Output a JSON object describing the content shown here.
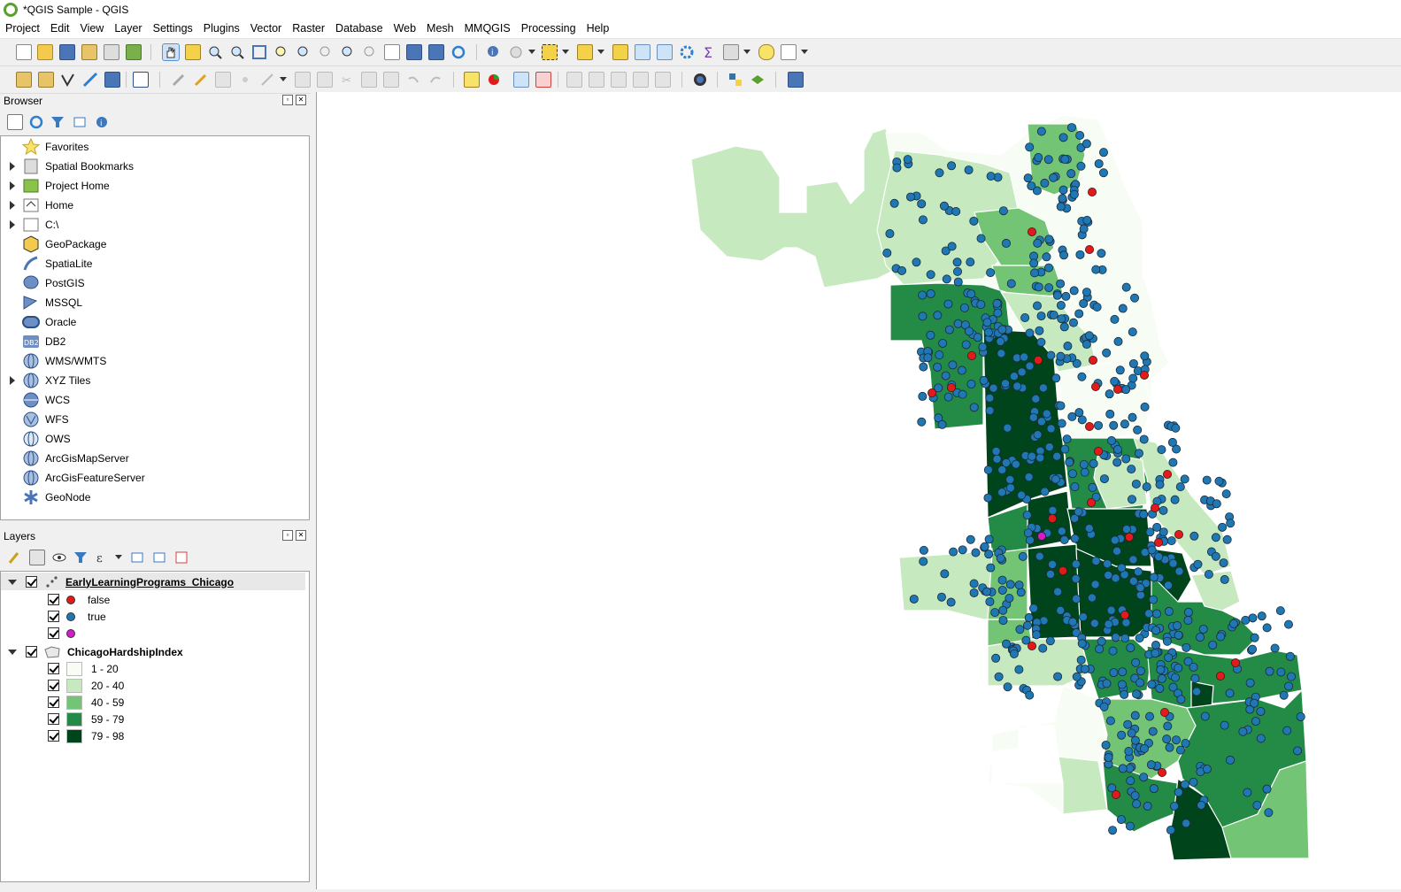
{
  "window": {
    "title": "*QGIS Sample - QGIS"
  },
  "menu": [
    "Project",
    "Edit",
    "View",
    "Layer",
    "Settings",
    "Plugins",
    "Vector",
    "Raster",
    "Database",
    "Web",
    "Mesh",
    "MMQGIS",
    "Processing",
    "Help"
  ],
  "browser": {
    "title": "Browser",
    "items": [
      {
        "label": "Favorites",
        "expandable": false,
        "icon": "star-icon"
      },
      {
        "label": "Spatial Bookmarks",
        "expandable": true,
        "icon": "bookmark-icon"
      },
      {
        "label": "Project Home",
        "expandable": true,
        "icon": "project-home-icon"
      },
      {
        "label": "Home",
        "expandable": true,
        "icon": "home-icon"
      },
      {
        "label": "C:\\",
        "expandable": true,
        "icon": "drive-icon"
      },
      {
        "label": "GeoPackage",
        "expandable": false,
        "icon": "geopackage-icon"
      },
      {
        "label": "SpatiaLite",
        "expandable": false,
        "icon": "spatialite-icon"
      },
      {
        "label": "PostGIS",
        "expandable": false,
        "icon": "postgis-icon"
      },
      {
        "label": "MSSQL",
        "expandable": false,
        "icon": "mssql-icon"
      },
      {
        "label": "Oracle",
        "expandable": false,
        "icon": "oracle-icon"
      },
      {
        "label": "DB2",
        "expandable": false,
        "icon": "db2-icon"
      },
      {
        "label": "WMS/WMTS",
        "expandable": false,
        "icon": "globe-icon"
      },
      {
        "label": "XYZ Tiles",
        "expandable": true,
        "icon": "globe-icon"
      },
      {
        "label": "WCS",
        "expandable": false,
        "icon": "globe-icon"
      },
      {
        "label": "WFS",
        "expandable": false,
        "icon": "globe-icon"
      },
      {
        "label": "OWS",
        "expandable": false,
        "icon": "globe-icon"
      },
      {
        "label": "ArcGisMapServer",
        "expandable": false,
        "icon": "globe-icon"
      },
      {
        "label": "ArcGisFeatureServer",
        "expandable": false,
        "icon": "globe-icon"
      },
      {
        "label": "GeoNode",
        "expandable": false,
        "icon": "geonode-icon"
      }
    ]
  },
  "layers": {
    "title": "Layers",
    "point_layer": {
      "name": "EarlyLearningPrograms_Chicago",
      "classes": [
        {
          "label": "false",
          "color": "#e31a1c"
        },
        {
          "label": "true",
          "color": "#1f78b4"
        },
        {
          "label": "",
          "color": "#d41cc8"
        }
      ]
    },
    "polygon_layer": {
      "name": "ChicagoHardshipIndex",
      "classes": [
        {
          "label": "1 - 20",
          "color": "#f7fcf5"
        },
        {
          "label": "20 - 40",
          "color": "#c7e9c0"
        },
        {
          "label": "40 - 59",
          "color": "#74c476"
        },
        {
          "label": "59 - 79",
          "color": "#238b45"
        },
        {
          "label": "79 - 98",
          "color": "#00441b"
        }
      ]
    }
  },
  "colors": {
    "pt_true": "#1f78b4",
    "pt_false": "#e31a1c",
    "pt_null": "#d41cc8",
    "c1": "#f7fcf5",
    "c2": "#c7e9c0",
    "c3": "#74c476",
    "c4": "#238b45",
    "c5": "#00441b"
  }
}
